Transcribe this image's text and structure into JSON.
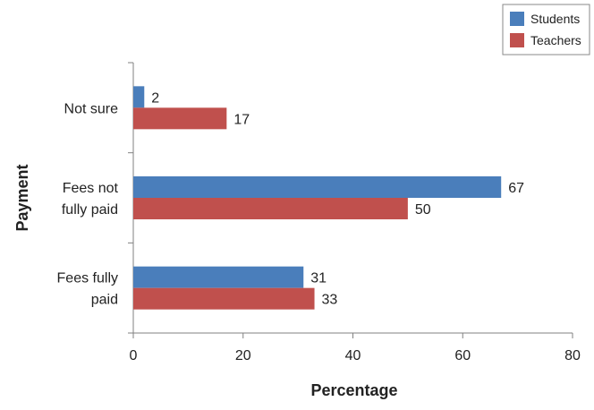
{
  "chart_data": {
    "type": "bar",
    "orientation": "horizontal",
    "categories": [
      [
        "Not sure"
      ],
      [
        "Fees not",
        "fully paid"
      ],
      [
        "Fees fully",
        "paid"
      ]
    ],
    "series": [
      {
        "name": "Students",
        "color": "#4a7ebb",
        "values": [
          2,
          67,
          31
        ]
      },
      {
        "name": "Teachers",
        "color": "#c0504d",
        "values": [
          17,
          50,
          33
        ]
      }
    ],
    "xlabel": "Percentage",
    "ylabel": "Payment",
    "xlim": [
      0,
      80
    ],
    "xticks": [
      0,
      20,
      40,
      60,
      80
    ],
    "grid": false,
    "legend_position": "top-right"
  }
}
